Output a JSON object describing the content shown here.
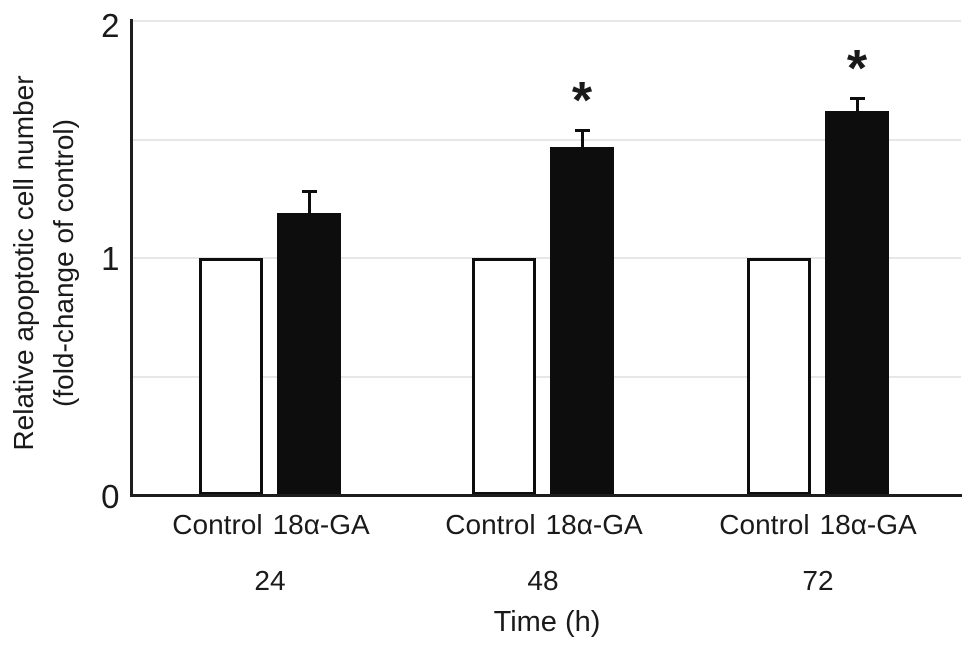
{
  "chart_data": {
    "type": "bar",
    "categories": [
      "24",
      "48",
      "72"
    ],
    "series": [
      {
        "name": "Control",
        "values": [
          1.0,
          1.0,
          1.0
        ],
        "errors": [
          0,
          0,
          0
        ],
        "significance": [
          "",
          "",
          ""
        ],
        "fill": "#ffffff",
        "outlined": true
      },
      {
        "name": "18α-GA",
        "values": [
          1.19,
          1.47,
          1.62
        ],
        "errors": [
          0.09,
          0.07,
          0.055
        ],
        "significance": [
          "",
          "*",
          "*"
        ],
        "fill": "#0d0d0d",
        "outlined": false
      }
    ],
    "ylabel_lines": [
      "Relative apoptotic cell number",
      "(fold-change of control)"
    ],
    "xlabel": "Time (h)",
    "ylim": [
      0,
      2
    ],
    "yticks": [
      "0",
      "1",
      "2"
    ],
    "gridlines": [
      0.5,
      1.0,
      1.5,
      2.0
    ],
    "grid": "horizontal, light gray",
    "legend_position": "none (series names under bars)"
  },
  "colors": {
    "control_fill": "#ffffff",
    "treatment_fill": "#0d0d0d",
    "bar_outline": "#0d0d0d",
    "axis": "#1d1d1d",
    "gridline": "#e7e7e7",
    "text": "#1a1a1a",
    "background": "#ffffff"
  }
}
